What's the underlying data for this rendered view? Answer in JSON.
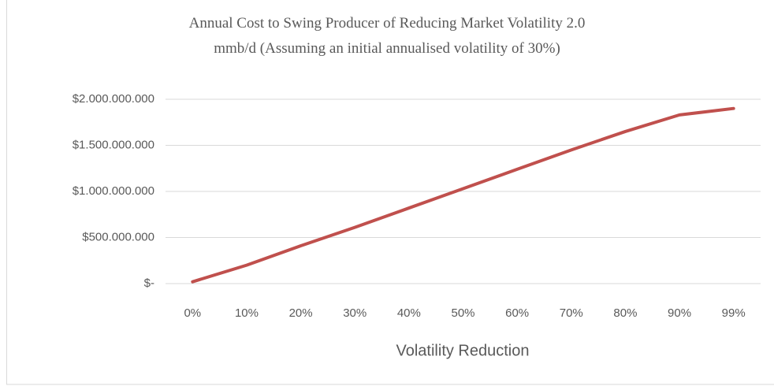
{
  "chart_data": {
    "type": "line",
    "title": "Annual Cost to Swing Producer of Reducing Market Volatility 2.0 mmb/d (Assuming an initial annualised volatility of 30%)",
    "x_label": "Volatility Reduction",
    "categories": [
      "0%",
      "10%",
      "20%",
      "30%",
      "40%",
      "50%",
      "60%",
      "70%",
      "80%",
      "90%",
      "99%"
    ],
    "values": [
      20000000,
      200000000,
      410000000,
      610000000,
      820000000,
      1030000000,
      1240000000,
      1450000000,
      1650000000,
      1830000000,
      1900000000
    ],
    "color": "#c0504d",
    "ylim": [
      0,
      2000000000
    ],
    "yticks": [
      {
        "value": 0,
        "label": "$-"
      },
      {
        "value": 500000000,
        "label": "$500.000.000"
      },
      {
        "value": 1000000000,
        "label": "$1.000.000.000"
      },
      {
        "value": 1500000000,
        "label": "$1.500.000.000"
      },
      {
        "value": 2000000000,
        "label": "$2.000.000.000"
      }
    ],
    "grid": true
  }
}
